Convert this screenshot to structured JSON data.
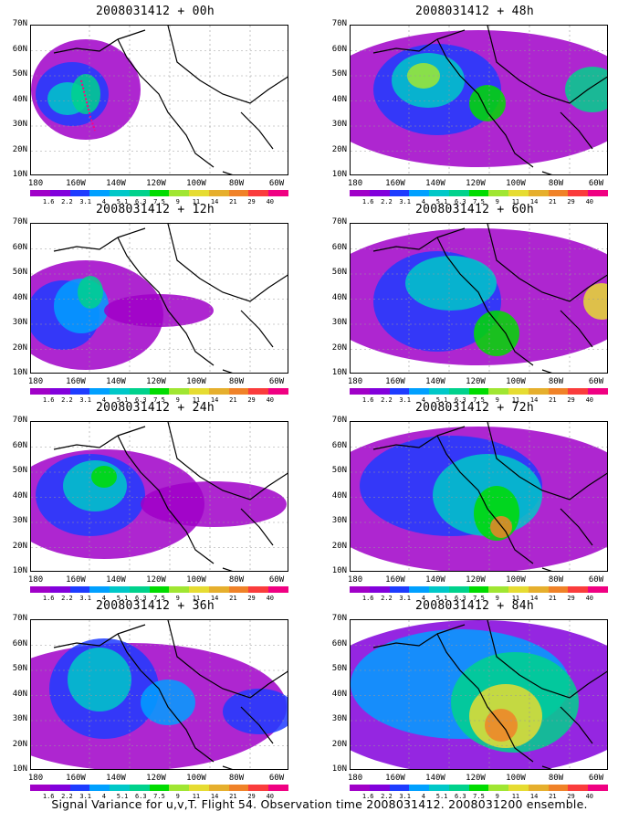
{
  "caption": "Signal Variance for u,v,T. Flight 54. Observation time 2008031412. 2008031200 ensemble.",
  "y_ticks": [
    "70N",
    "60N",
    "50N",
    "40N",
    "30N",
    "20N",
    "10N"
  ],
  "x_ticks": [
    "180",
    "160W",
    "140W",
    "120W",
    "100W",
    "80W",
    "60W"
  ],
  "colorbar": {
    "labels": [
      "1.6",
      "2.2",
      "3.1",
      "4",
      "5.1",
      "6.3",
      "7.5",
      "9",
      "11",
      "14",
      "21",
      "29",
      "40"
    ],
    "colors": [
      "#a000c8",
      "#8200dc",
      "#1e3cff",
      "#00a0ff",
      "#00c8c8",
      "#00d28c",
      "#00dc00",
      "#a0e632",
      "#e6dc32",
      "#e6af2d",
      "#f08228",
      "#fa3c3c",
      "#f00082"
    ]
  },
  "panels": [
    {
      "title": "2008031412 + 00h",
      "lead_h": 0
    },
    {
      "title": "2008031412 + 12h",
      "lead_h": 12
    },
    {
      "title": "2008031412 + 24h",
      "lead_h": 24
    },
    {
      "title": "2008031412 + 36h",
      "lead_h": 36
    },
    {
      "title": "2008031412 + 48h",
      "lead_h": 48
    },
    {
      "title": "2008031412 + 60h",
      "lead_h": 60
    },
    {
      "title": "2008031412 + 72h",
      "lead_h": 72
    },
    {
      "title": "2008031412 + 84h",
      "lead_h": 84
    }
  ],
  "chart_data": {
    "type": "heatmap",
    "variable": "Signal Variance for u,v,T",
    "xlim": [
      "170E",
      "60W"
    ],
    "ylim": [
      "10N",
      "70N"
    ],
    "grid": true
  }
}
